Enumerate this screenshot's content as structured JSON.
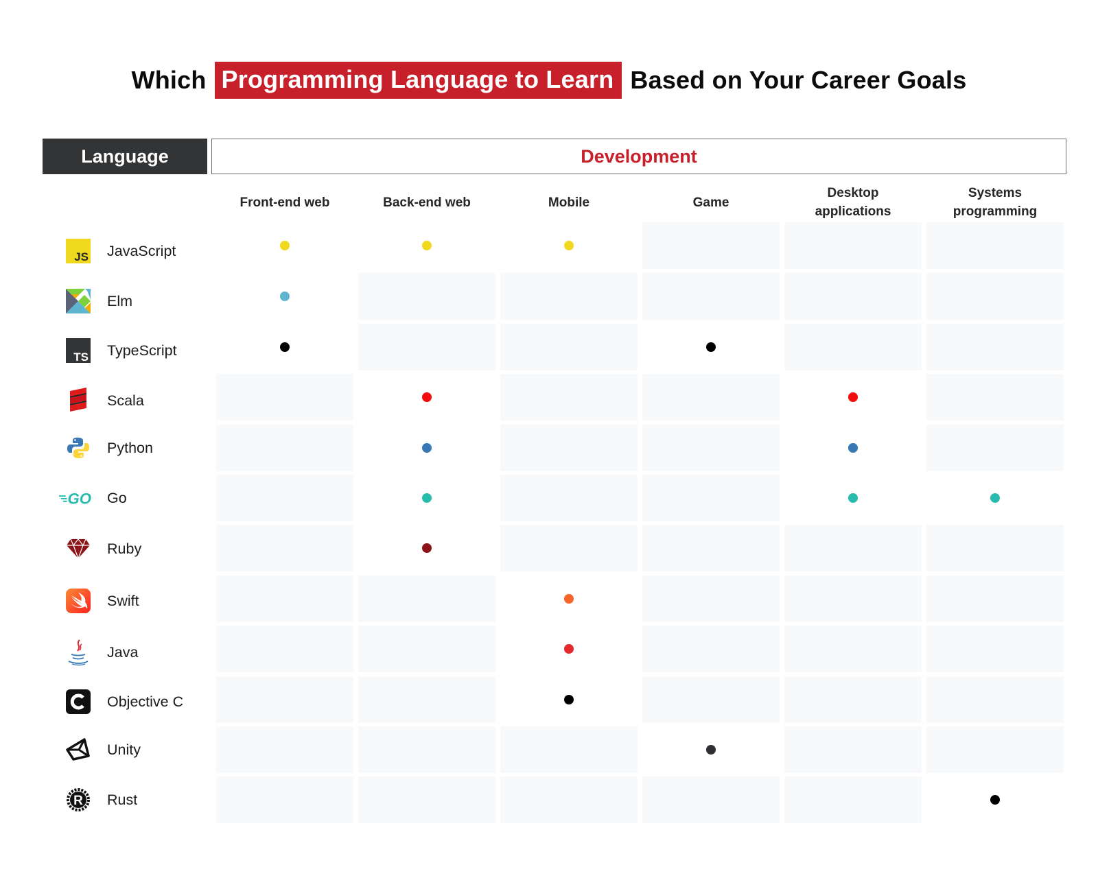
{
  "title": {
    "prefix": "Which",
    "highlight": "Programming Language to Learn",
    "suffix": "Based on Your Career Goals",
    "highlight_color": "#c8202a"
  },
  "headers": {
    "language": "Language",
    "development": "Development",
    "columns": [
      {
        "line1": "Front-end web",
        "line2": ""
      },
      {
        "line1": "Back-end web",
        "line2": ""
      },
      {
        "line1": "Mobile",
        "line2": ""
      },
      {
        "line1": "Game",
        "line2": ""
      },
      {
        "line1": "Desktop",
        "line2": "applications"
      },
      {
        "line1": "Systems",
        "line2": "programming"
      }
    ]
  },
  "chart_data": {
    "type": "table",
    "title": "Which Programming Language to Learn Based on Your Career Goals",
    "row_header": "Language",
    "group_header": "Development",
    "columns": [
      "Front-end web",
      "Back-end web",
      "Mobile",
      "Game",
      "Desktop applications",
      "Systems programming"
    ],
    "rows": [
      {
        "language": "JavaScript",
        "icon": "javascript-logo-icon",
        "color": "#f0d81e",
        "marks": [
          1,
          1,
          1,
          0,
          0,
          0
        ]
      },
      {
        "language": "Elm",
        "icon": "elm-logo-icon",
        "color": "#5fb4cf",
        "marks": [
          1,
          0,
          0,
          0,
          0,
          0
        ]
      },
      {
        "language": "TypeScript",
        "icon": "typescript-logo-icon",
        "color": "#000000",
        "marks": [
          1,
          0,
          0,
          1,
          0,
          0
        ]
      },
      {
        "language": "Scala",
        "icon": "scala-logo-icon",
        "color": "#f20c0c",
        "marks": [
          0,
          1,
          0,
          0,
          1,
          0
        ]
      },
      {
        "language": "Python",
        "icon": "python-logo-icon",
        "color": "#3777b3",
        "marks": [
          0,
          1,
          0,
          0,
          1,
          0
        ]
      },
      {
        "language": "Go",
        "icon": "go-logo-icon",
        "color": "#27bcae",
        "marks": [
          0,
          1,
          0,
          0,
          1,
          1
        ]
      },
      {
        "language": "Ruby",
        "icon": "ruby-logo-icon",
        "color": "#8c1419",
        "marks": [
          0,
          1,
          0,
          0,
          0,
          0
        ]
      },
      {
        "language": "Swift",
        "icon": "swift-logo-icon",
        "color": "#f6642a",
        "marks": [
          0,
          0,
          1,
          0,
          0,
          0
        ]
      },
      {
        "language": "Java",
        "icon": "java-logo-icon",
        "color": "#e5272e",
        "marks": [
          0,
          0,
          1,
          0,
          0,
          0
        ]
      },
      {
        "language": "Objective C",
        "icon": "objective-c-logo-icon",
        "color": "#000000",
        "marks": [
          0,
          0,
          1,
          0,
          0,
          0
        ]
      },
      {
        "language": "Unity",
        "icon": "unity-logo-icon",
        "color": "#2f2f33",
        "marks": [
          0,
          0,
          0,
          1,
          0,
          0
        ]
      },
      {
        "language": "Rust",
        "icon": "rust-logo-icon",
        "color": "#000000",
        "marks": [
          0,
          0,
          0,
          0,
          0,
          1
        ]
      }
    ]
  }
}
